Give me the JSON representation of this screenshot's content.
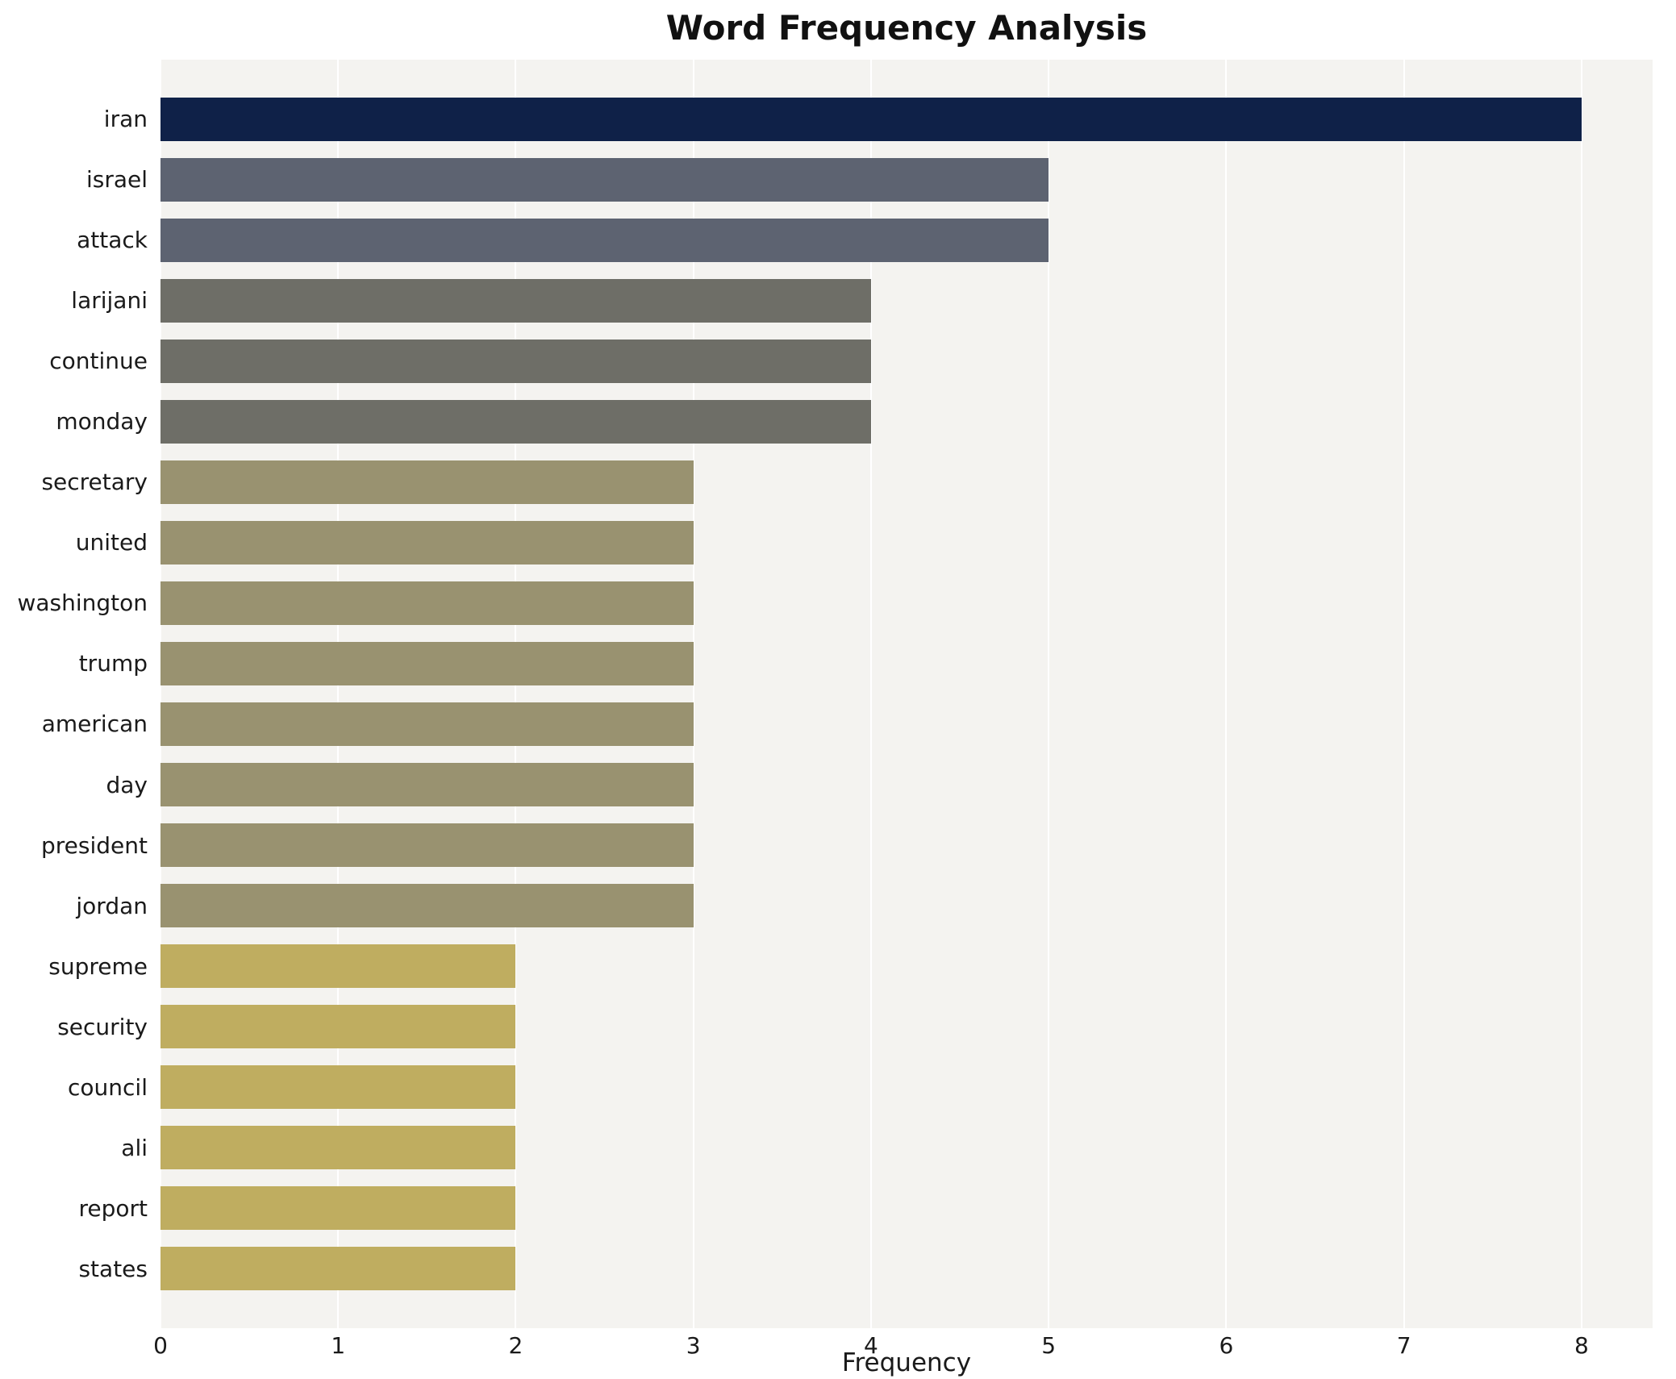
{
  "chart_data": {
    "type": "bar",
    "orientation": "horizontal",
    "title": "Word Frequency Analysis",
    "xlabel": "Frequency",
    "ylabel": "",
    "categories": [
      "iran",
      "israel",
      "attack",
      "larijani",
      "continue",
      "monday",
      "secretary",
      "united",
      "washington",
      "trump",
      "american",
      "day",
      "president",
      "jordan",
      "supreme",
      "security",
      "council",
      "ali",
      "report",
      "states"
    ],
    "values": [
      8,
      5,
      5,
      4,
      4,
      4,
      3,
      3,
      3,
      3,
      3,
      3,
      3,
      3,
      2,
      2,
      2,
      2,
      2,
      2
    ],
    "colors": [
      "#0f2148",
      "#5d6371",
      "#5d6371",
      "#6e6e67",
      "#6e6e67",
      "#6e6e67",
      "#999270",
      "#999270",
      "#999270",
      "#999270",
      "#999270",
      "#999270",
      "#999270",
      "#999270",
      "#bfad60",
      "#bfad60",
      "#bfad60",
      "#bfad60",
      "#bfad60",
      "#bfad60"
    ],
    "xlim": [
      0,
      8.4
    ],
    "xticks": [
      0,
      1,
      2,
      3,
      4,
      5,
      6,
      7,
      8
    ],
    "grid": true,
    "gridline_color": "#ffffff",
    "plot_background": "#f4f3f0",
    "legend": false
  }
}
